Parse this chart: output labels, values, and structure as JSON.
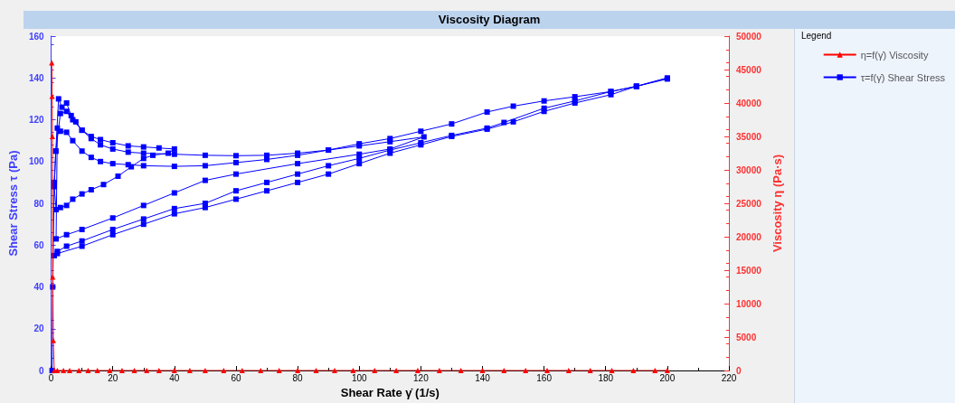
{
  "chart_data": {
    "type": "line",
    "title": "Viscosity Diagram",
    "xlabel": "Shear Rate γ̇ (1/s)",
    "ylabel": "Shear Stress τ (Pa)",
    "y2label": "Viscosity η (Pa·s)",
    "legend_title": "Legend",
    "legend": "right",
    "grid": false,
    "xlim": [
      0,
      220
    ],
    "xticks": [
      0,
      20,
      40,
      60,
      80,
      100,
      120,
      140,
      160,
      180,
      200,
      220
    ],
    "ylim": [
      0,
      160
    ],
    "yticks": [
      0,
      20,
      40,
      60,
      80,
      100,
      120,
      140,
      160
    ],
    "y2lim": [
      0,
      50000
    ],
    "y2ticks": [
      0,
      5000,
      10000,
      15000,
      20000,
      25000,
      30000,
      35000,
      40000,
      45000,
      50000
    ],
    "series": [
      {
        "name": "η=f(γ̇) Viscosity",
        "color": "#ff0000",
        "axis": "y2",
        "marker": "triangle",
        "x": [
          0.2,
          0.3,
          0.4,
          0.5,
          0.7,
          1,
          2,
          4,
          6,
          9,
          12,
          15,
          19,
          23,
          27,
          31,
          35,
          40,
          45,
          50,
          56,
          62,
          68,
          74,
          80,
          86,
          92,
          98,
          105,
          112,
          119,
          126,
          133,
          140,
          147,
          154,
          161,
          168,
          175,
          182,
          189,
          196,
          200
        ],
        "values": [
          46000,
          41000,
          35000,
          14000,
          4500,
          0,
          0,
          0,
          0,
          0,
          0,
          0,
          0,
          0,
          0,
          0,
          0,
          0,
          0,
          0,
          0,
          0,
          0,
          0,
          0,
          0,
          0,
          0,
          0,
          0,
          0,
          0,
          0,
          0,
          0,
          0,
          0,
          0,
          0,
          0,
          0,
          0,
          0
        ]
      },
      {
        "name": "τ=f(γ̇) Shear Stress",
        "color": "#0000ff",
        "axis": "y",
        "marker": "square",
        "x": [
          0.3,
          0.5,
          1,
          1.5,
          2.4,
          3.5,
          5,
          6.5,
          8,
          10,
          13,
          16,
          20,
          25,
          30,
          35,
          40,
          38,
          33,
          30,
          26,
          21.7,
          17,
          13,
          10,
          7,
          5,
          3,
          1.6,
          1,
          1.5,
          3,
          5,
          7,
          10,
          13,
          16,
          20,
          25,
          30,
          40,
          50,
          60,
          70,
          80,
          90,
          100,
          110,
          121,
          110,
          100,
          80,
          60,
          50,
          40,
          30,
          20,
          10,
          5,
          1.6,
          2,
          3,
          5,
          7,
          10,
          13,
          16,
          20,
          25,
          30,
          40,
          50,
          60,
          70,
          80,
          90,
          100,
          110,
          120,
          130,
          141.5,
          150,
          160,
          170,
          181.7,
          190,
          200,
          190,
          181.7,
          170,
          160,
          147,
          141.5,
          130,
          120,
          110,
          100,
          90,
          80,
          70,
          60,
          50,
          40,
          30,
          20,
          10,
          5,
          2,
          1,
          2,
          10,
          20,
          30,
          40,
          50,
          60,
          70,
          80,
          90,
          100,
          110,
          120,
          130,
          141.5,
          150,
          160,
          170,
          181.7,
          190,
          200
        ],
        "values": [
          0,
          40,
          90,
          105,
          130,
          126,
          128,
          122,
          119,
          115,
          112,
          110.5,
          109,
          107.5,
          107,
          106.5,
          106,
          104,
          103,
          101.5,
          97.5,
          93,
          89,
          86.5,
          84.5,
          82,
          79,
          78,
          77,
          88,
          105,
          123,
          124,
          120,
          115,
          111,
          108,
          106,
          104.5,
          104,
          103.5,
          103,
          102.8,
          103,
          104,
          105.5,
          107.5,
          109.5,
          111.8,
          106,
          103.5,
          99,
          94,
          91,
          85,
          79,
          73,
          67.5,
          65,
          63,
          116,
          114.5,
          114,
          110,
          105,
          102,
          100,
          99,
          98.5,
          98,
          97.7,
          98,
          99.5,
          101,
          103,
          105.5,
          108.5,
          111,
          114.5,
          118,
          123.7,
          126.5,
          129,
          131,
          133.5,
          136,
          140,
          136,
          133.5,
          129,
          125.5,
          118.7,
          116,
          112.5,
          109,
          105.5,
          101.5,
          98,
          94,
          90,
          86,
          80,
          77.5,
          72.5,
          67.5,
          62,
          59.5,
          57,
          55,
          56,
          59.5,
          65,
          70,
          75,
          78,
          82,
          86,
          90,
          94,
          99,
          104,
          108,
          112,
          115.5,
          119,
          124,
          128,
          132,
          136,
          139.5
        ]
      }
    ]
  }
}
